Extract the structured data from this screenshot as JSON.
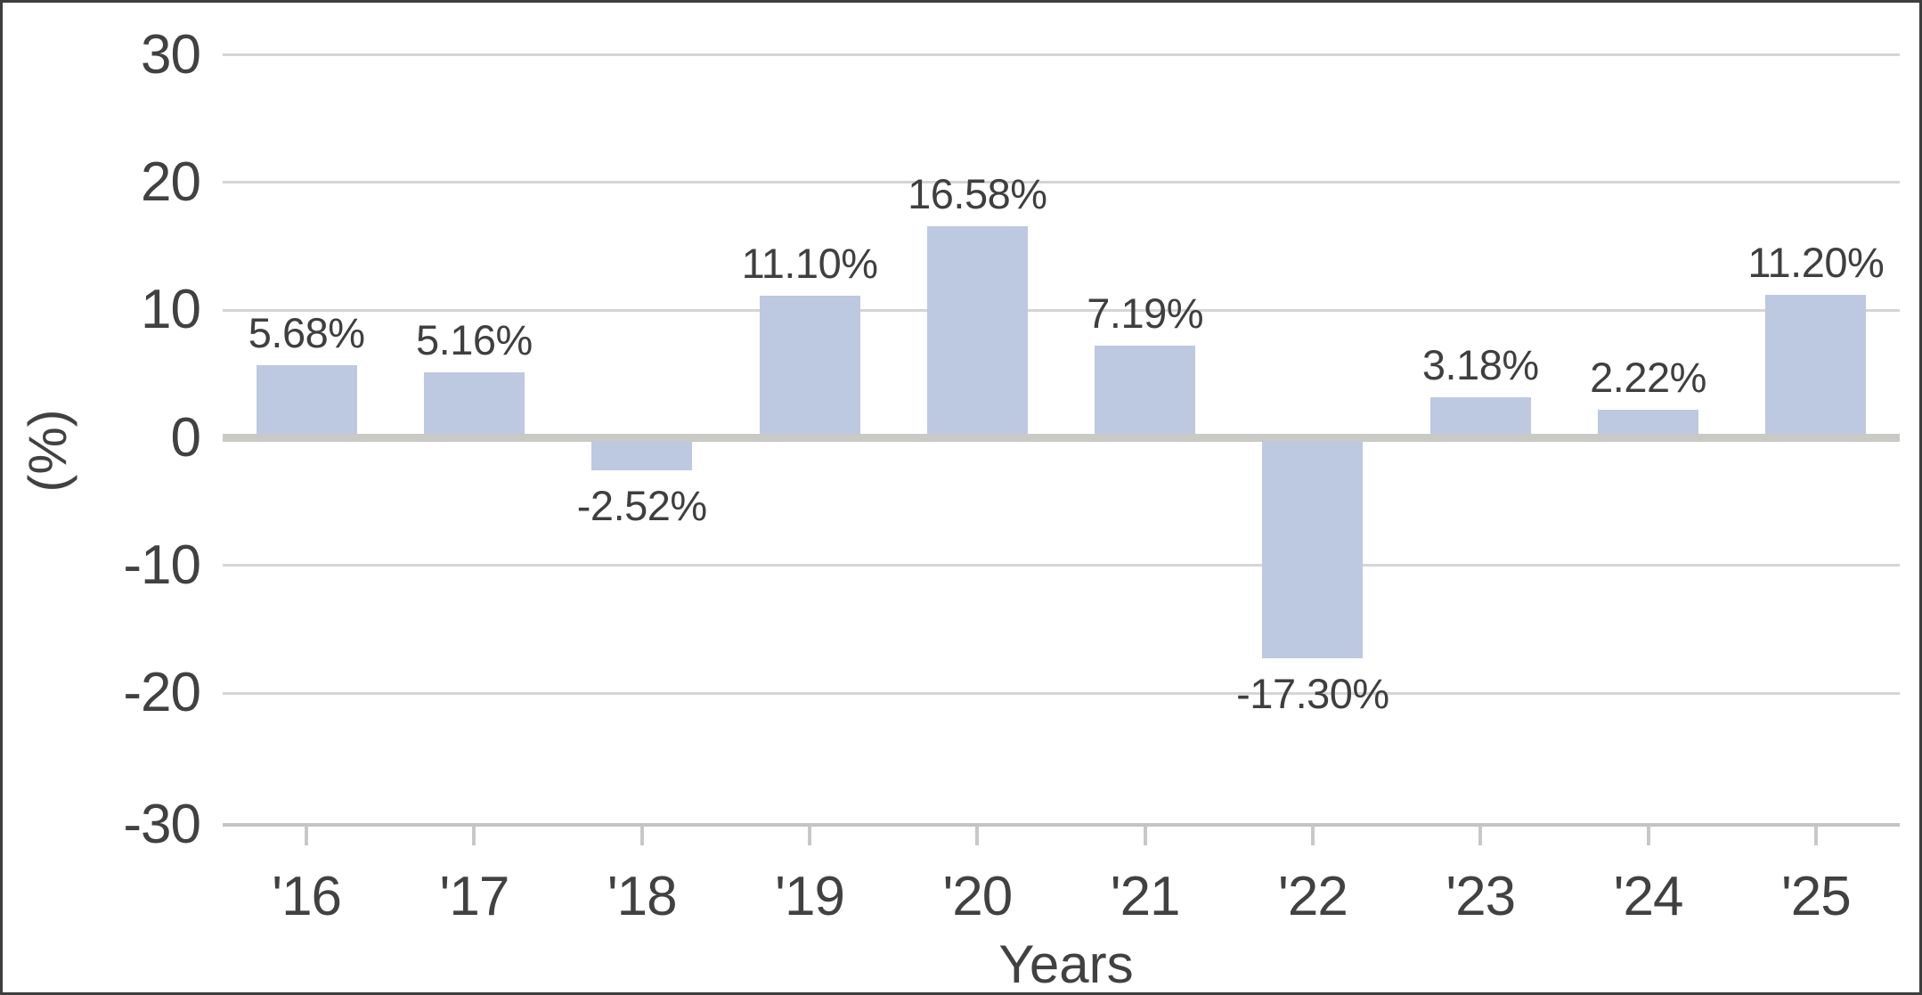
{
  "chart_data": {
    "type": "bar",
    "title": "",
    "categories": [
      "'16",
      "'17",
      "'18",
      "'19",
      "'20",
      "'21",
      "'22",
      "'23",
      "'24",
      "'25"
    ],
    "values": [
      5.68,
      5.16,
      -2.52,
      11.1,
      16.58,
      7.19,
      -17.3,
      3.18,
      2.22,
      11.2
    ],
    "data_labels": [
      "5.68%",
      "5.16%",
      "-2.52%",
      "11.10%",
      "16.58%",
      "7.19%",
      "-17.30%",
      "3.18%",
      "2.22%",
      "11.20%"
    ],
    "xlabel": "Years",
    "ylabel": "(%)",
    "ylim": [
      -30,
      30
    ],
    "y_ticks": [
      30,
      20,
      10,
      0,
      -10,
      -20,
      -30
    ],
    "y_tick_labels": [
      "30",
      "20",
      "10",
      "0",
      "-10",
      "-20",
      "-30"
    ],
    "grid": "horizontal gridlines every 10, zero line emphasized",
    "legend": "none",
    "colors": {
      "bar_fill": "#BDC8E1",
      "gridline": "#D5D5D5",
      "zero_line": "#C9C9C6",
      "axis_line": "#C4C4C4",
      "text": "#414141",
      "border": "#3E3E3E",
      "background": "#FFFFFF"
    }
  }
}
